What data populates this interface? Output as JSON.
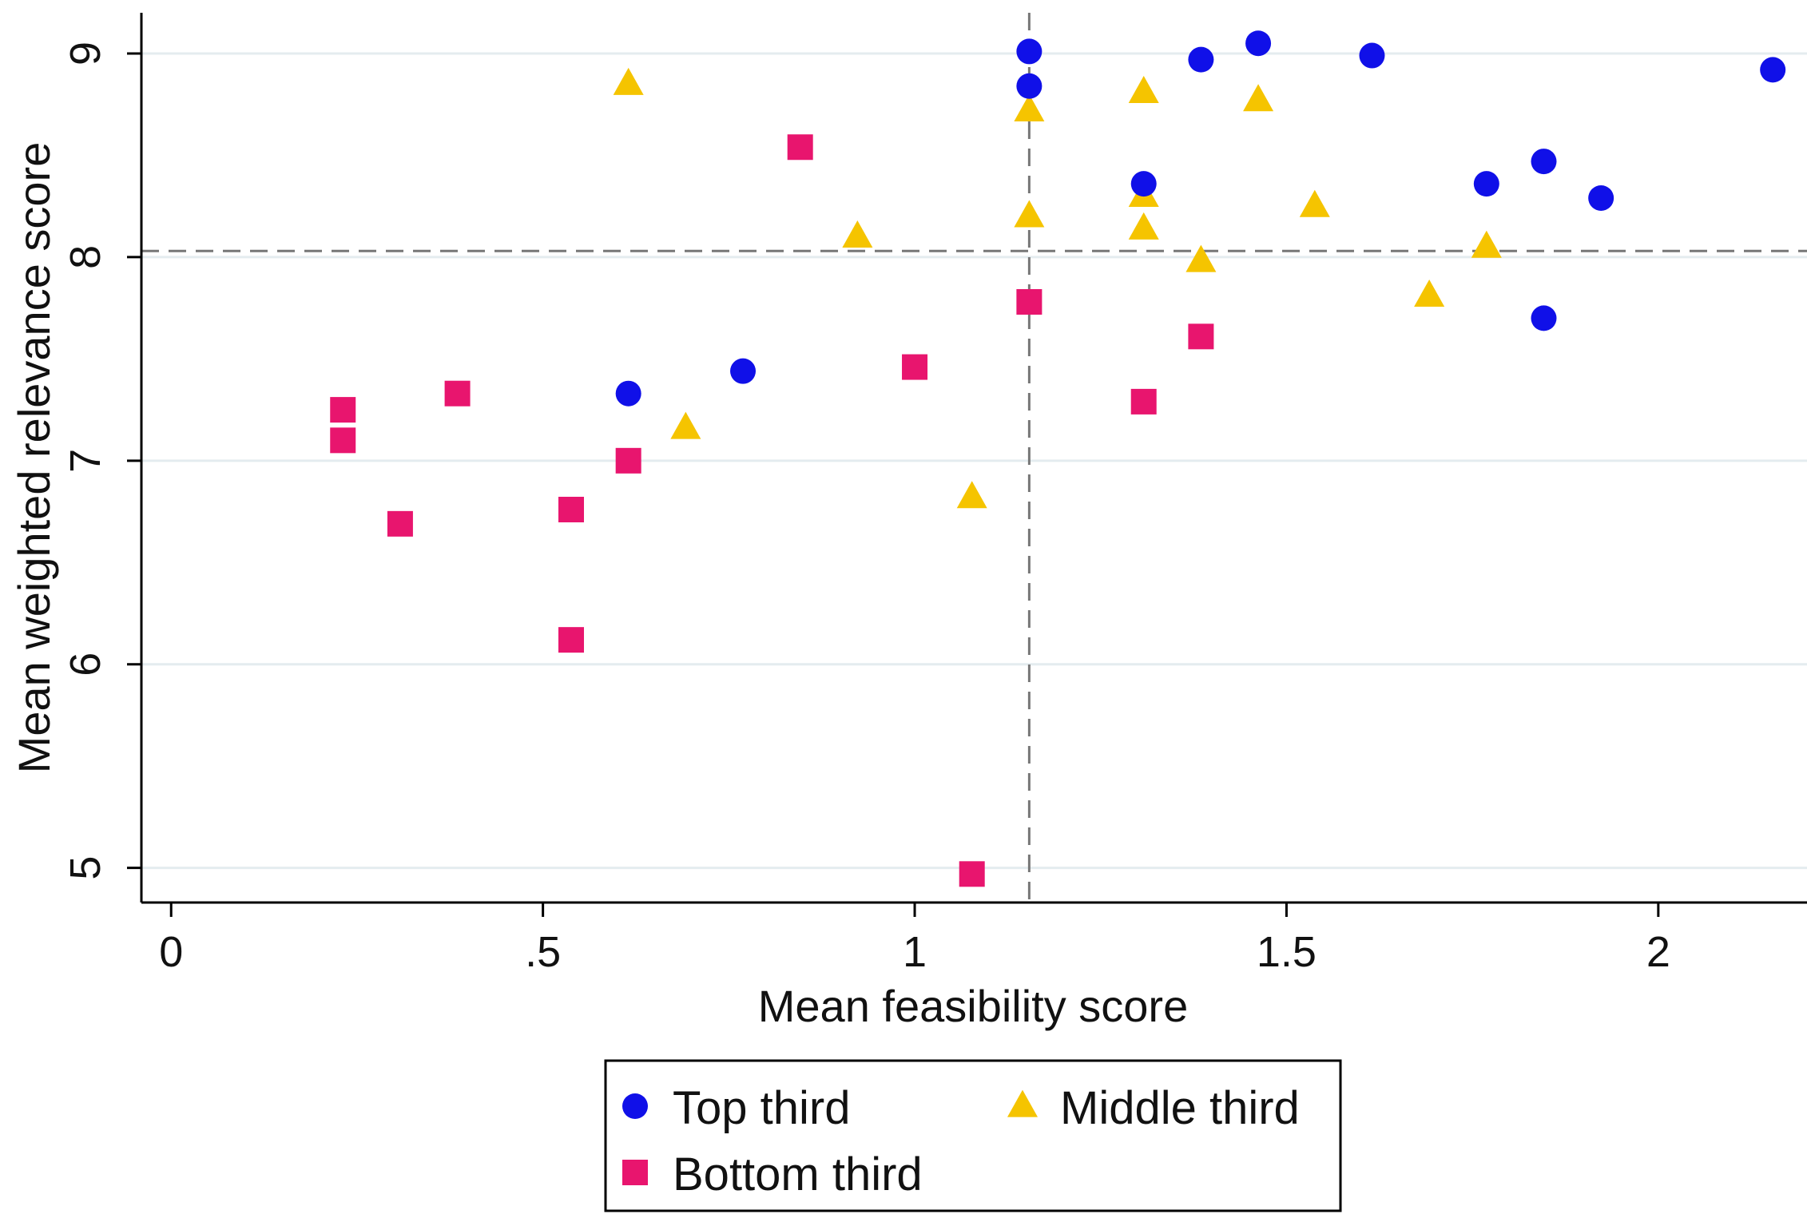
{
  "chart_data": {
    "type": "scatter",
    "title": "",
    "xlabel": "Mean feasibility score",
    "ylabel": "Mean weighted relevance score",
    "xlim": [
      -0.04,
      2.2
    ],
    "ylim": [
      4.83,
      9.2
    ],
    "x_ticks": [
      {
        "value": 0,
        "label": "0"
      },
      {
        "value": 0.5,
        "label": ".5"
      },
      {
        "value": 1,
        "label": "1"
      },
      {
        "value": 1.5,
        "label": "1.5"
      },
      {
        "value": 2,
        "label": "2"
      }
    ],
    "y_ticks": [
      {
        "value": 5,
        "label": "5"
      },
      {
        "value": 6,
        "label": "6"
      },
      {
        "value": 7,
        "label": "7"
      },
      {
        "value": 8,
        "label": "8"
      },
      {
        "value": 9,
        "label": "9"
      }
    ],
    "grid": "horizontal",
    "reference_lines": {
      "x": 1.154,
      "y": 8.03
    },
    "legend": {
      "placement": "bottom",
      "columns": 2
    },
    "series": [
      {
        "name": "Top third",
        "marker": "circle",
        "color": "#1010e8",
        "points": [
          [
            1.154,
            9.01
          ],
          [
            1.154,
            8.84
          ],
          [
            1.385,
            8.97
          ],
          [
            1.462,
            9.05
          ],
          [
            1.615,
            8.99
          ],
          [
            2.154,
            8.92
          ],
          [
            1.308,
            8.36
          ],
          [
            1.769,
            8.36
          ],
          [
            1.846,
            8.47
          ],
          [
            1.923,
            8.29
          ],
          [
            1.846,
            7.7
          ],
          [
            0.615,
            7.33
          ],
          [
            0.769,
            7.44
          ]
        ]
      },
      {
        "name": "Middle third",
        "marker": "triangle",
        "color": "#f5c400",
        "points": [
          [
            0.615,
            8.85
          ],
          [
            1.154,
            8.72
          ],
          [
            1.308,
            8.81
          ],
          [
            1.462,
            8.77
          ],
          [
            1.308,
            8.3
          ],
          [
            1.154,
            8.2
          ],
          [
            1.308,
            8.14
          ],
          [
            0.923,
            8.1
          ],
          [
            1.538,
            8.25
          ],
          [
            1.385,
            7.98
          ],
          [
            1.769,
            8.05
          ],
          [
            1.692,
            7.81
          ],
          [
            0.692,
            7.16
          ],
          [
            1.077,
            6.82
          ]
        ]
      },
      {
        "name": "Bottom third",
        "marker": "square",
        "color": "#e8156e",
        "points": [
          [
            0.846,
            8.54
          ],
          [
            1.154,
            7.78
          ],
          [
            1.385,
            7.61
          ],
          [
            1.0,
            7.46
          ],
          [
            1.308,
            7.29
          ],
          [
            0.385,
            7.33
          ],
          [
            0.231,
            7.25
          ],
          [
            0.231,
            7.1
          ],
          [
            0.615,
            7.0
          ],
          [
            0.538,
            6.76
          ],
          [
            0.308,
            6.69
          ],
          [
            0.538,
            6.12
          ],
          [
            1.077,
            4.97
          ]
        ]
      }
    ]
  }
}
